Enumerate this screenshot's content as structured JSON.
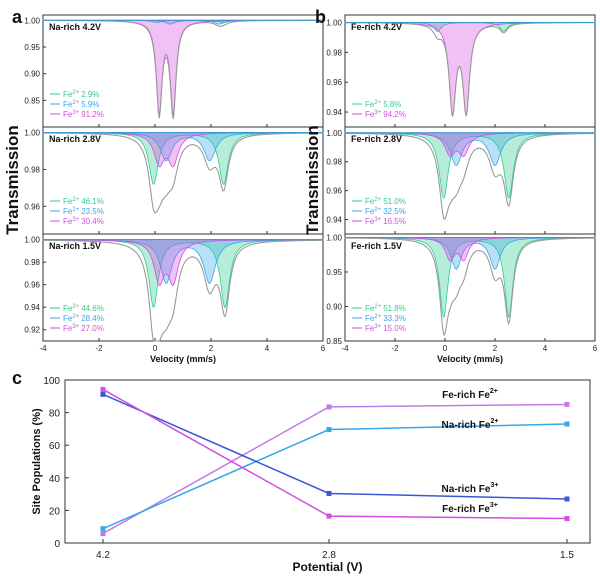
{
  "figure": {
    "panel_labels": [
      "a",
      "b",
      "c"
    ],
    "colors": {
      "fe2_site1": "#2ecc8f",
      "fe2_site2": "#3aa5e8",
      "fe3": "#d24ee0",
      "envelope": "#9a9a9a",
      "frame": "#333333",
      "baseline": "#2a9fd6"
    }
  },
  "chart_data": [
    {
      "panel": "a",
      "type": "line",
      "ylabel": "Transmission",
      "xlabel": "Velocity (mm/s)",
      "xlim": [
        -4,
        6
      ],
      "xticks": [
        "-4",
        "-2",
        "0",
        "2",
        "4",
        "6"
      ],
      "subplots": [
        {
          "label": "Na-rich 4.2V",
          "ylim": [
            0.8,
            1.01
          ],
          "yticks": [
            "1.00",
            "0.95",
            "0.90",
            "0.85"
          ],
          "legend": [
            {
              "prefix": "Fe",
              "sup": "2+",
              "value": "2.9%",
              "color": "#2ecc8f"
            },
            {
              "prefix": "Fe",
              "sup": "2+",
              "value": "5.9%",
              "color": "#3aa5e8"
            },
            {
              "prefix": "Fe",
              "sup": "3+",
              "value": "91.2%",
              "color": "#d24ee0"
            }
          ],
          "components": [
            {
              "site": "Fe2+",
              "peaks": [
                0.05,
                2.45
              ],
              "depth": 0.004,
              "width": 0.2
            },
            {
              "site": "Fe2+",
              "peaks": [
                0.55,
                2.3
              ],
              "depth": 0.007,
              "width": 0.2
            },
            {
              "site": "Fe3+",
              "peaks": [
                0.15,
                0.65
              ],
              "depth": 0.17,
              "width": 0.12
            }
          ]
        },
        {
          "label": "Na-rich 2.8V",
          "ylim": [
            0.945,
            1.003
          ],
          "yticks": [
            "1.00",
            "0.98",
            "0.96"
          ],
          "legend": [
            {
              "prefix": "Fe",
              "sup": "2+",
              "value": "46.1%",
              "color": "#2ecc8f"
            },
            {
              "prefix": "Fe",
              "sup": "2+",
              "value": "23.5%",
              "color": "#3aa5e8"
            },
            {
              "prefix": "Fe",
              "sup": "3+",
              "value": "30.4%",
              "color": "#d24ee0"
            }
          ],
          "components": [
            {
              "site": "Fe2+",
              "peaks": [
                -0.05,
                2.45
              ],
              "depth": 0.028,
              "width": 0.2
            },
            {
              "site": "Fe2+",
              "peaks": [
                0.4,
                1.95
              ],
              "depth": 0.015,
              "width": 0.25
            },
            {
              "site": "Fe3+",
              "peaks": [
                0.15,
                0.65
              ],
              "depth": 0.016,
              "width": 0.22
            }
          ]
        },
        {
          "label": "Na-rich 1.5V",
          "ylim": [
            0.91,
            1.005
          ],
          "yticks": [
            "1.00",
            "0.98",
            "0.96",
            "0.94",
            "0.92"
          ],
          "legend": [
            {
              "prefix": "Fe",
              "sup": "2+",
              "value": "44.6%",
              "color": "#2ecc8f"
            },
            {
              "prefix": "Fe",
              "sup": "2+",
              "value": "28.4%",
              "color": "#3aa5e8"
            },
            {
              "prefix": "Fe",
              "sup": "3+",
              "value": "27.0%",
              "color": "#d24ee0"
            }
          ],
          "components": [
            {
              "site": "Fe2+",
              "peaks": [
                -0.05,
                2.5
              ],
              "depth": 0.06,
              "width": 0.2
            },
            {
              "site": "Fe2+",
              "peaks": [
                0.4,
                1.95
              ],
              "depth": 0.038,
              "width": 0.25
            },
            {
              "site": "Fe3+",
              "peaks": [
                0.15,
                0.65
              ],
              "depth": 0.035,
              "width": 0.22
            }
          ]
        }
      ]
    },
    {
      "panel": "b",
      "type": "line",
      "ylabel": "Transmission",
      "xlabel": "Velocity (mm/s)",
      "xlim": [
        -4,
        6
      ],
      "xticks": [
        "-4",
        "-2",
        "0",
        "2",
        "4",
        "6"
      ],
      "subplots": [
        {
          "label": "Fe-rich 4.2V",
          "ylim": [
            0.93,
            1.005
          ],
          "yticks": [
            "1.00",
            "0.98",
            "0.96",
            "0.94"
          ],
          "legend": [
            {
              "prefix": "Fe",
              "sup": "2+",
              "value": "5.8%",
              "color": "#2ecc8f"
            },
            {
              "prefix": "Fe",
              "sup": "3+",
              "value": "94.2%",
              "color": "#d24ee0"
            }
          ],
          "components": [
            {
              "site": "Fe2+",
              "peaks": [
                -0.3,
                2.35
              ],
              "depth": 0.006,
              "width": 0.18
            },
            {
              "site": "Fe3+",
              "peaks": [
                0.3,
                0.85
              ],
              "depth": 0.058,
              "width": 0.16
            }
          ]
        },
        {
          "label": "Fe-rich 2.8V",
          "ylim": [
            0.93,
            1.004
          ],
          "yticks": [
            "1.00",
            "0.98",
            "0.96",
            "0.94"
          ],
          "legend": [
            {
              "prefix": "Fe",
              "sup": "2+",
              "value": "51.0%",
              "color": "#2ecc8f"
            },
            {
              "prefix": "Fe",
              "sup": "2+",
              "value": "32.5%",
              "color": "#3aa5e8"
            },
            {
              "prefix": "Fe",
              "sup": "3+",
              "value": "16.5%",
              "color": "#d24ee0"
            }
          ],
          "components": [
            {
              "site": "Fe2+",
              "peaks": [
                -0.05,
                2.55
              ],
              "depth": 0.045,
              "width": 0.22
            },
            {
              "site": "Fe2+",
              "peaks": [
                0.45,
                2.0
              ],
              "depth": 0.022,
              "width": 0.28
            },
            {
              "site": "Fe3+",
              "peaks": [
                0.2,
                0.75
              ],
              "depth": 0.014,
              "width": 0.25
            }
          ]
        },
        {
          "label": "Fe-rich 1.5V",
          "ylim": [
            0.85,
            1.005
          ],
          "yticks": [
            "1.00",
            "0.95",
            "0.90",
            "0.85"
          ],
          "legend": [
            {
              "prefix": "Fe",
              "sup": "2+",
              "value": "51.8%",
              "color": "#2ecc8f"
            },
            {
              "prefix": "Fe",
              "sup": "2+",
              "value": "33.3%",
              "color": "#3aa5e8"
            },
            {
              "prefix": "Fe",
              "sup": "3+",
              "value": "15.0%",
              "color": "#d24ee0"
            }
          ],
          "components": [
            {
              "site": "Fe2+",
              "peaks": [
                -0.05,
                2.55
              ],
              "depth": 0.115,
              "width": 0.2
            },
            {
              "site": "Fe2+",
              "peaks": [
                0.45,
                2.0
              ],
              "depth": 0.045,
              "width": 0.25
            },
            {
              "site": "Fe3+",
              "peaks": [
                0.2,
                0.75
              ],
              "depth": 0.03,
              "width": 0.22
            }
          ]
        }
      ]
    },
    {
      "panel": "c",
      "type": "line",
      "xlabel": "Potential (V)",
      "ylabel": "Site Populations (%)",
      "categories": [
        "4.2",
        "2.8",
        "1.5"
      ],
      "ylim": [
        0,
        100
      ],
      "yticks": [
        "0",
        "20",
        "40",
        "60",
        "80",
        "100"
      ],
      "series": [
        {
          "name": "Fe-rich Fe",
          "sup": "2+",
          "values": [
            5.8,
            83.5,
            85.0
          ],
          "color": "#c07ae6"
        },
        {
          "name": "Na-rich Fe",
          "sup": "2+",
          "values": [
            8.8,
            69.6,
            73.0
          ],
          "color": "#3aa5e8"
        },
        {
          "name": "Na-rich Fe",
          "sup": "3+",
          "values": [
            91.2,
            30.4,
            27.0
          ],
          "color": "#3b56d6"
        },
        {
          "name": "Fe-rich Fe",
          "sup": "3+",
          "values": [
            94.2,
            16.5,
            15.0
          ],
          "color": "#d24ee0"
        }
      ]
    }
  ]
}
